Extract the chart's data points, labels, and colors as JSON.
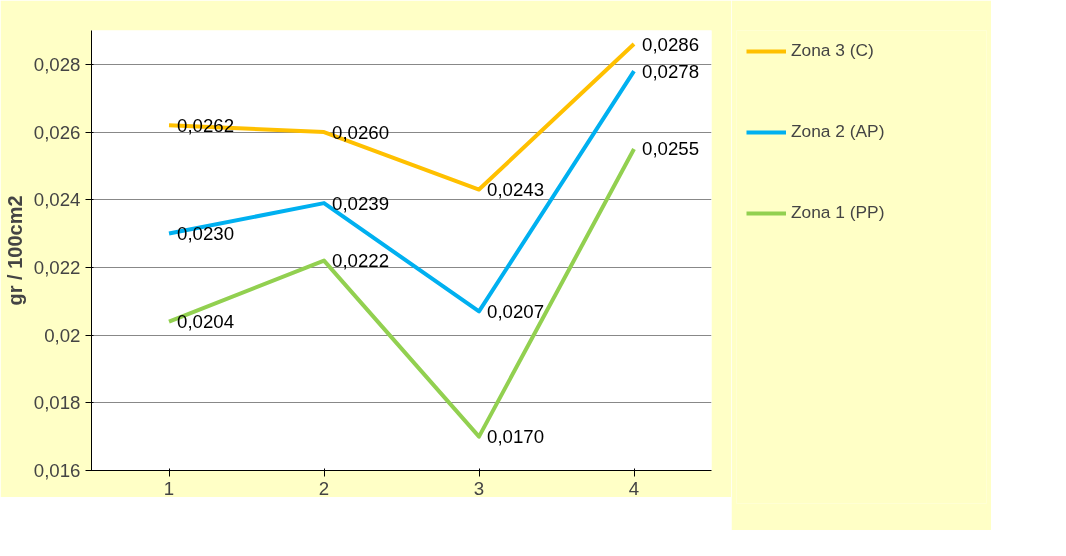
{
  "chart_data": {
    "type": "line",
    "ylabel": "gr / 100cm2",
    "categories": [
      "1",
      "2",
      "3",
      "4"
    ],
    "ylim": [
      0.016,
      0.029
    ],
    "yticks": [
      {
        "value": 0.016,
        "label": "0,016"
      },
      {
        "value": 0.018,
        "label": "0,018"
      },
      {
        "value": 0.02,
        "label": "0,02"
      },
      {
        "value": 0.022,
        "label": "0,022"
      },
      {
        "value": 0.024,
        "label": "0,024"
      },
      {
        "value": 0.026,
        "label": "0,026"
      },
      {
        "value": 0.028,
        "label": "0,028"
      }
    ],
    "series": [
      {
        "name": "Zona 3 (C)",
        "color": "#ffc000",
        "values": [
          0.0262,
          0.026,
          0.0243,
          0.0286
        ],
        "value_labels": [
          "0,0262",
          "0,0260",
          "0,0243",
          "0,0286"
        ]
      },
      {
        "name": "Zona 2 (AP)",
        "color": "#00b0f0",
        "values": [
          0.023,
          0.0239,
          0.0207,
          0.0278
        ],
        "value_labels": [
          "0,0230",
          "0,0239",
          "0,0207",
          "0,0278"
        ]
      },
      {
        "name": "Zona 1 (PP)",
        "color": "#92d050",
        "values": [
          0.0204,
          0.0222,
          0.017,
          0.0255
        ],
        "value_labels": [
          "0,0204",
          "0,0222",
          "0,0170",
          "0,0255"
        ]
      }
    ],
    "grid": "y",
    "legend": "right",
    "marker": "none",
    "line_style": "solid"
  }
}
